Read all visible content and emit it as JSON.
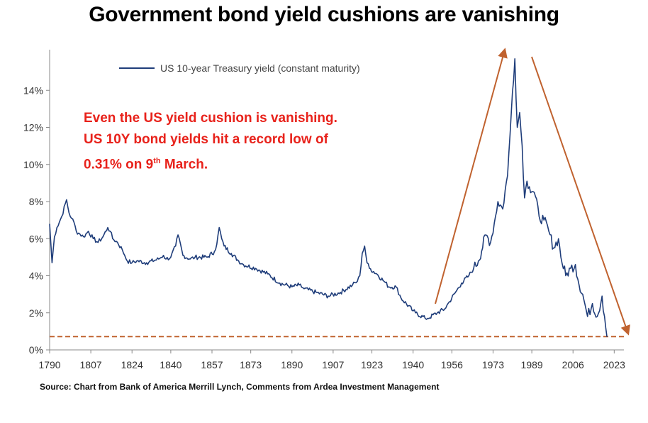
{
  "title": "Government bond yield cushions are vanishing",
  "annotation": {
    "line1": "Even the US yield cushion is vanishing.",
    "line2": "US 10Y bond yields hit a record low of",
    "line3_prefix": "0.31% on 9",
    "line3_sup": "th",
    "line3_suffix": " March."
  },
  "source": "Source: Chart from Bank of America Merrill Lynch, Comments from Ardea Investment Management",
  "colors": {
    "series": "#1f3d7a",
    "arrow": "#c0622f",
    "annotation": "#e8221b"
  },
  "chart_data": {
    "type": "line",
    "title": "Government bond yield cushions are vanishing",
    "xlabel": "",
    "ylabel": "",
    "xlim": [
      1790,
      2027
    ],
    "ylim": [
      0,
      0.16
    ],
    "yticks": [
      0,
      0.02,
      0.04,
      0.06,
      0.08,
      0.1,
      0.12,
      0.14
    ],
    "ytick_labels": [
      "0%",
      "2%",
      "4%",
      "6%",
      "8%",
      "10%",
      "12%",
      "14%"
    ],
    "xticks": [
      1790,
      1807,
      1824,
      1840,
      1857,
      1873,
      1890,
      1907,
      1923,
      1940,
      1956,
      1973,
      1989,
      2006,
      2023
    ],
    "xtick_labels": [
      "1790",
      "1807",
      "1824",
      "1840",
      "1857",
      "1873",
      "1890",
      "1907",
      "1923",
      "1940",
      "1956",
      "1973",
      "1989",
      "2006",
      "2023"
    ],
    "legend": {
      "position": "top-left"
    },
    "grid": false,
    "series": [
      {
        "name": "US 10-year Treasury yield (constant maturity)",
        "x": [
          1790,
          1791,
          1792,
          1793,
          1795,
          1797,
          1798,
          1799,
          1800,
          1801,
          1802,
          1804,
          1806,
          1808,
          1810,
          1812,
          1814,
          1815,
          1816,
          1818,
          1820,
          1821,
          1822,
          1824,
          1826,
          1830,
          1835,
          1837,
          1838,
          1840,
          1842,
          1843,
          1845,
          1848,
          1850,
          1855,
          1858,
          1859,
          1860,
          1861,
          1862,
          1865,
          1868,
          1870,
          1875,
          1880,
          1885,
          1890,
          1893,
          1895,
          1900,
          1905,
          1910,
          1915,
          1917,
          1918,
          1919,
          1920,
          1921,
          1922,
          1925,
          1928,
          1930,
          1933,
          1935,
          1940,
          1941,
          1945,
          1946,
          1950,
          1953,
          1955,
          1958,
          1960,
          1963,
          1965,
          1967,
          1970,
          1972,
          1974,
          1975,
          1977,
          1978,
          1979,
          1980,
          1981,
          1982,
          1983,
          1984,
          1985,
          1986,
          1987,
          1988,
          1990,
          1992,
          1994,
          1996,
          1998,
          2000,
          2001,
          2003,
          2005,
          2007,
          2008,
          2010,
          2012,
          2014,
          2016,
          2018,
          2019,
          2020
        ],
        "y": [
          0.068,
          0.047,
          0.061,
          0.066,
          0.072,
          0.081,
          0.074,
          0.071,
          0.069,
          0.064,
          0.063,
          0.061,
          0.064,
          0.06,
          0.058,
          0.061,
          0.066,
          0.064,
          0.06,
          0.058,
          0.054,
          0.051,
          0.048,
          0.047,
          0.048,
          0.047,
          0.049,
          0.051,
          0.049,
          0.05,
          0.056,
          0.062,
          0.051,
          0.049,
          0.05,
          0.05,
          0.053,
          0.057,
          0.066,
          0.06,
          0.056,
          0.052,
          0.048,
          0.046,
          0.044,
          0.041,
          0.036,
          0.034,
          0.035,
          0.033,
          0.031,
          0.029,
          0.031,
          0.035,
          0.037,
          0.04,
          0.052,
          0.056,
          0.047,
          0.044,
          0.041,
          0.037,
          0.034,
          0.034,
          0.028,
          0.021,
          0.02,
          0.017,
          0.017,
          0.02,
          0.022,
          0.026,
          0.032,
          0.036,
          0.04,
          0.044,
          0.048,
          0.062,
          0.058,
          0.072,
          0.08,
          0.076,
          0.086,
          0.094,
          0.116,
          0.139,
          0.157,
          0.12,
          0.128,
          0.11,
          0.082,
          0.091,
          0.088,
          0.085,
          0.072,
          0.07,
          0.064,
          0.055,
          0.06,
          0.05,
          0.04,
          0.044,
          0.046,
          0.038,
          0.03,
          0.018,
          0.025,
          0.018,
          0.029,
          0.018,
          0.007
        ]
      }
    ],
    "reference_line": {
      "y": 0.0072,
      "style": "dashed"
    },
    "annotations": [
      "Even the US yield cushion is vanishing.",
      "US 10Y bond yields hit a record low of",
      "0.31% on 9th March."
    ]
  }
}
